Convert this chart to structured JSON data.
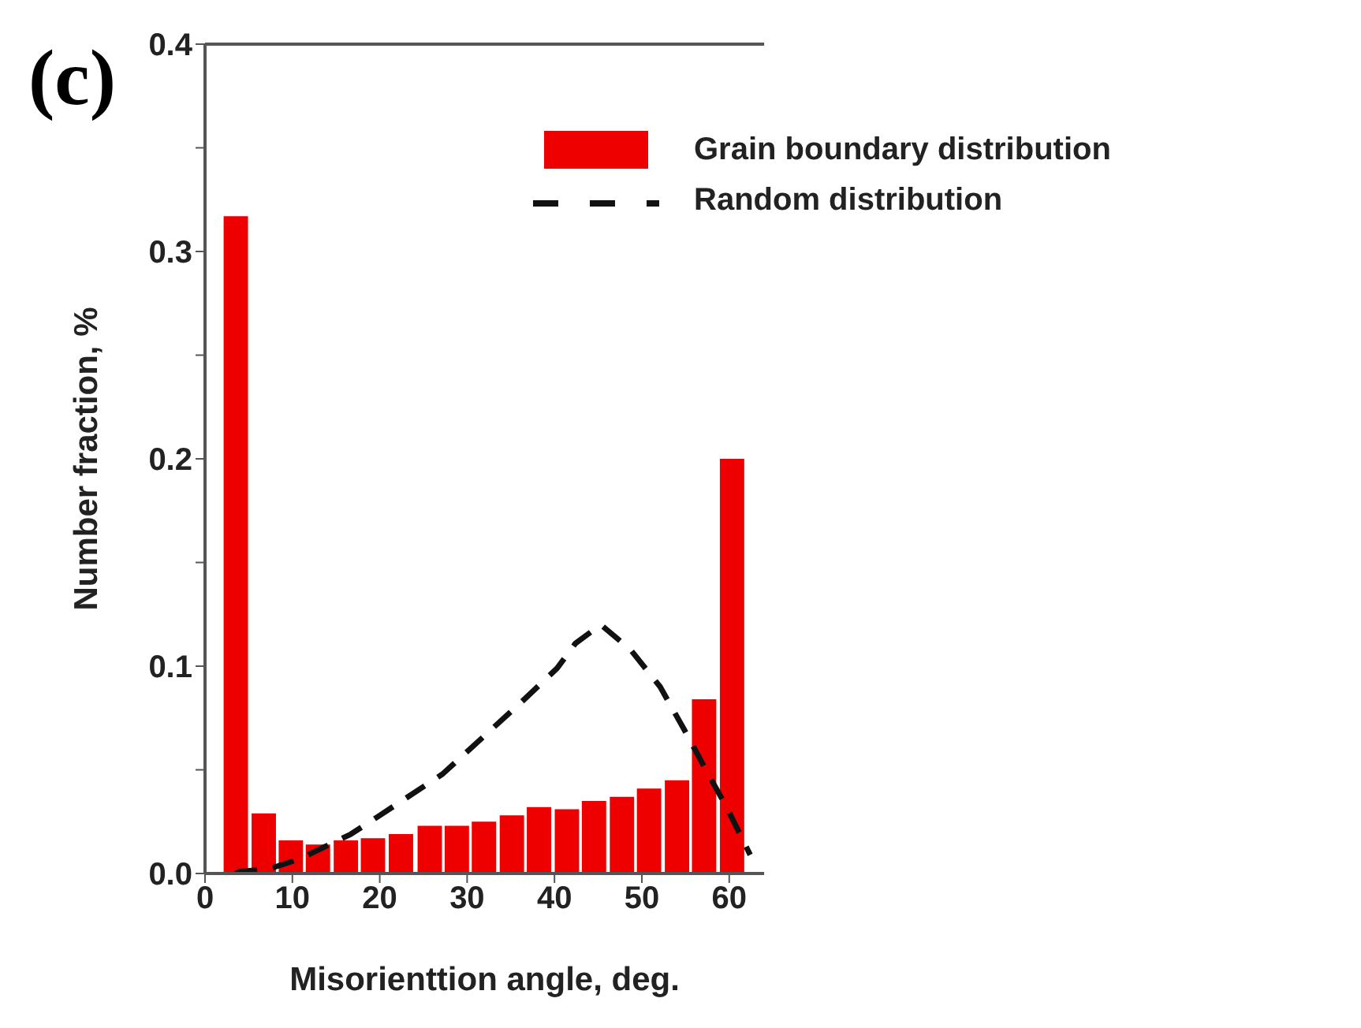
{
  "chart_data": {
    "type": "bar",
    "xlabel": "Misorienttion angle, deg.",
    "ylabel": "Number fraction, %",
    "annotations": [
      "(c)"
    ],
    "xlim": [
      0,
      64
    ],
    "xticks": [
      0,
      10,
      20,
      30,
      40,
      50,
      60
    ],
    "ylim": [
      0,
      0.4
    ],
    "yticks": [
      {
        "value": 0,
        "label": "0.0"
      },
      {
        "value": 0.05,
        "label": null
      },
      0.1,
      {
        "value": 0.15,
        "label": null
      },
      0.2,
      {
        "value": 0.25,
        "label": null
      },
      0.3,
      {
        "value": 0.35,
        "label": null
      },
      0.4
    ],
    "legend": "top right",
    "grid": false,
    "series": [
      {
        "name": "Grain boundary distribution",
        "color": "#ee0000",
        "x": [
          3.5,
          6.7,
          9.8,
          12.9,
          16.1,
          19.2,
          22.4,
          25.7,
          28.8,
          31.9,
          35.1,
          38.2,
          41.4,
          44.5,
          47.7,
          50.8,
          54.0,
          57.1,
          60.3
        ],
        "values": [
          0.317,
          0.029,
          0.016,
          0.014,
          0.016,
          0.017,
          0.019,
          0.023,
          0.023,
          0.025,
          0.028,
          0.032,
          0.031,
          0.035,
          0.037,
          0.041,
          0.045,
          0.084,
          0.2
        ]
      },
      {
        "name": "Random distribution",
        "type": "line",
        "color": "#111111",
        "line_style": "dashed",
        "marker": "none",
        "x": [
          3.5,
          4.0,
          7.2,
          10.8,
          16.7,
          20.0,
          27.2,
          36.3,
          40.3,
          42.4,
          45.3,
          48.7,
          52.1,
          54.9,
          57.2,
          59.7,
          62.4
        ],
        "values": [
          0.0,
          0.001,
          0.002,
          0.007,
          0.019,
          0.028,
          0.048,
          0.083,
          0.099,
          0.111,
          0.12,
          0.108,
          0.09,
          0.069,
          0.051,
          0.032,
          0.009
        ]
      }
    ]
  }
}
